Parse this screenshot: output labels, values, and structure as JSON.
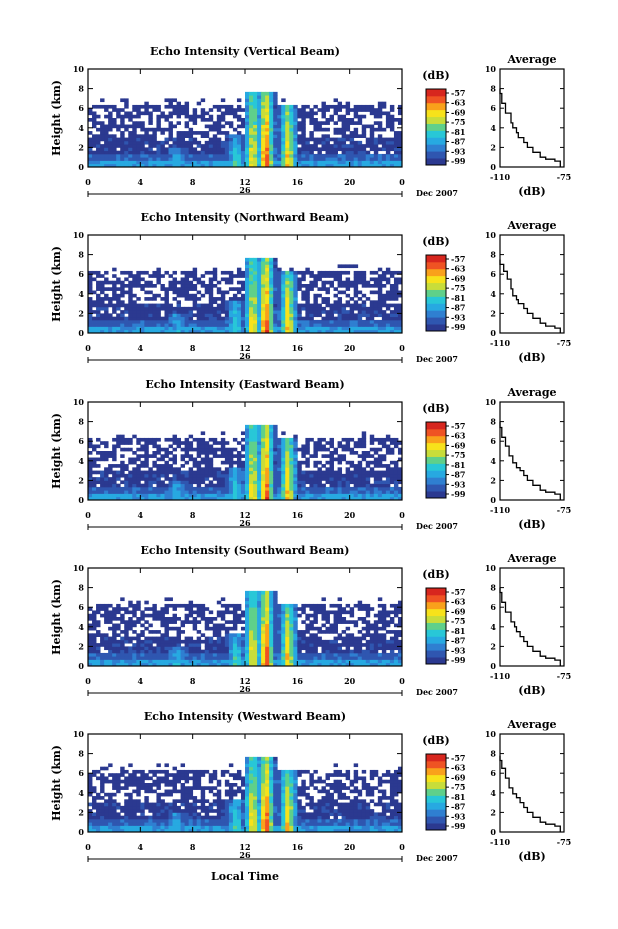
{
  "colors": {
    "colormap": [
      "#2b3990",
      "#2f56b0",
      "#2f7fd1",
      "#27a9e1",
      "#28c7d7",
      "#5fd08a",
      "#c8dd3a",
      "#f7e21b",
      "#f9a11b",
      "#ef5323",
      "#d7261e"
    ],
    "background": "#ffffff",
    "axis": "#000000"
  },
  "shared": {
    "ylabel": "Height (km)",
    "colorbar_unit": "(dB)",
    "colorbar_ticks": [
      "-57",
      "-63",
      "-69",
      "-75",
      "-81",
      "-87",
      "-93",
      "-99"
    ],
    "date_day": "26",
    "date_label": "Dec 2007",
    "xlabel": "Local Time",
    "avg_title": "Average",
    "avg_xlabel": "(dB)",
    "avg_xticks": [
      "-110",
      "-75"
    ]
  },
  "chart_data": [
    {
      "type": "heatmap",
      "title": "Echo Intensity (Vertical Beam)",
      "xticks": [
        "0",
        "4",
        "8",
        "12",
        "16",
        "20",
        "0"
      ],
      "yticks": [
        "0",
        "2",
        "4",
        "6",
        "8",
        "10"
      ],
      "xlim": [
        0,
        24
      ],
      "ylim": [
        0,
        10
      ],
      "zlim": [
        -99,
        -57
      ],
      "bursts": [
        {
          "t": 6.8,
          "top": 2.0,
          "int": 0.35
        },
        {
          "t": 11.3,
          "top": 3.2,
          "int": 0.45
        },
        {
          "t": 12.6,
          "top": 7.8,
          "int": 0.75
        },
        {
          "t": 13.6,
          "top": 7.8,
          "int": 1.0
        },
        {
          "t": 15.3,
          "top": 6.5,
          "int": 0.8
        }
      ],
      "average_profile": {
        "x": [
          -110,
          -109,
          -107,
          -104,
          -103,
          -101,
          -100,
          -97,
          -95,
          -92,
          -88,
          -85,
          -80,
          -77
        ],
        "y": [
          8,
          7.5,
          6.5,
          5.5,
          4.5,
          4.0,
          3.5,
          3.0,
          2.5,
          2.0,
          1.5,
          1.0,
          0.8,
          0.6
        ],
        "xlim": [
          -110,
          -75
        ],
        "ylim": [
          0,
          10
        ],
        "yticks": [
          "0",
          "2",
          "4",
          "6",
          "8",
          "10"
        ]
      }
    },
    {
      "type": "heatmap",
      "title": "Echo Intensity (Northward Beam)",
      "xticks": [
        "0",
        "4",
        "8",
        "12",
        "16",
        "20",
        "0"
      ],
      "yticks": [
        "0",
        "2",
        "4",
        "6",
        "8",
        "10"
      ],
      "xlim": [
        0,
        24
      ],
      "ylim": [
        0,
        10
      ],
      "zlim": [
        -99,
        -57
      ],
      "bursts": [
        {
          "t": 6.8,
          "top": 2.0,
          "int": 0.35
        },
        {
          "t": 11.3,
          "top": 3.2,
          "int": 0.45
        },
        {
          "t": 12.6,
          "top": 7.8,
          "int": 0.75
        },
        {
          "t": 13.6,
          "top": 7.8,
          "int": 1.0
        },
        {
          "t": 15.3,
          "top": 6.5,
          "int": 0.8
        }
      ],
      "average_profile": {
        "x": [
          -110,
          -108,
          -106,
          -104,
          -103,
          -101,
          -100,
          -97,
          -95,
          -92,
          -88,
          -85,
          -80,
          -77
        ],
        "y": [
          7.5,
          7.0,
          6.3,
          5.5,
          4.5,
          3.8,
          3.4,
          3.0,
          2.5,
          2.0,
          1.5,
          1.0,
          0.7,
          0.5
        ],
        "xlim": [
          -110,
          -75
        ],
        "ylim": [
          0,
          10
        ],
        "yticks": [
          "0",
          "2",
          "4",
          "6",
          "8",
          "10"
        ]
      }
    },
    {
      "type": "heatmap",
      "title": "Echo Intensity (Eastward Beam)",
      "xticks": [
        "0",
        "4",
        "8",
        "12",
        "16",
        "20",
        "0"
      ],
      "yticks": [
        "0",
        "2",
        "4",
        "6",
        "8",
        "10"
      ],
      "xlim": [
        0,
        24
      ],
      "ylim": [
        0,
        10
      ],
      "zlim": [
        -99,
        -57
      ],
      "bursts": [
        {
          "t": 6.8,
          "top": 2.0,
          "int": 0.35
        },
        {
          "t": 11.3,
          "top": 3.2,
          "int": 0.45
        },
        {
          "t": 12.6,
          "top": 7.8,
          "int": 0.75
        },
        {
          "t": 13.6,
          "top": 7.8,
          "int": 1.0
        },
        {
          "t": 15.3,
          "top": 6.5,
          "int": 0.8
        }
      ],
      "average_profile": {
        "x": [
          -110,
          -109,
          -107,
          -105,
          -103,
          -101,
          -99,
          -97,
          -95,
          -92,
          -88,
          -85,
          -80,
          -77
        ],
        "y": [
          8,
          7.4,
          6.4,
          5.5,
          4.5,
          3.8,
          3.3,
          3.0,
          2.5,
          2.0,
          1.5,
          1.0,
          0.8,
          0.6
        ],
        "xlim": [
          -110,
          -75
        ],
        "ylim": [
          0,
          10
        ],
        "yticks": [
          "0",
          "2",
          "4",
          "6",
          "8",
          "10"
        ]
      }
    },
    {
      "type": "heatmap",
      "title": "Echo Intensity (Southward Beam)",
      "xticks": [
        "0",
        "4",
        "8",
        "12",
        "16",
        "20",
        "0"
      ],
      "yticks": [
        "0",
        "2",
        "4",
        "6",
        "8",
        "10"
      ],
      "xlim": [
        0,
        24
      ],
      "ylim": [
        0,
        10
      ],
      "zlim": [
        -99,
        -57
      ],
      "bursts": [
        {
          "t": 6.8,
          "top": 2.0,
          "int": 0.35
        },
        {
          "t": 11.3,
          "top": 3.2,
          "int": 0.45
        },
        {
          "t": 12.6,
          "top": 7.8,
          "int": 0.75
        },
        {
          "t": 13.6,
          "top": 7.8,
          "int": 1.0
        },
        {
          "t": 15.3,
          "top": 6.5,
          "int": 0.8
        }
      ],
      "average_profile": {
        "x": [
          -110,
          -109,
          -107,
          -104,
          -102,
          -101,
          -99,
          -97,
          -95,
          -92,
          -88,
          -85,
          -80,
          -77
        ],
        "y": [
          8,
          7.5,
          6.5,
          5.5,
          4.5,
          4.0,
          3.5,
          3.0,
          2.5,
          2.0,
          1.5,
          1.0,
          0.8,
          0.6
        ],
        "xlim": [
          -110,
          -75
        ],
        "ylim": [
          0,
          10
        ],
        "yticks": [
          "0",
          "2",
          "4",
          "6",
          "8",
          "10"
        ]
      }
    },
    {
      "type": "heatmap",
      "title": "Echo Intensity (Westward Beam)",
      "xticks": [
        "0",
        "4",
        "8",
        "12",
        "16",
        "20",
        "0"
      ],
      "yticks": [
        "0",
        "2",
        "4",
        "6",
        "8",
        "10"
      ],
      "xlim": [
        0,
        24
      ],
      "ylim": [
        0,
        10
      ],
      "zlim": [
        -99,
        -57
      ],
      "bursts": [
        {
          "t": 6.8,
          "top": 2.0,
          "int": 0.35
        },
        {
          "t": 11.3,
          "top": 3.2,
          "int": 0.45
        },
        {
          "t": 12.6,
          "top": 7.8,
          "int": 0.75
        },
        {
          "t": 13.6,
          "top": 7.8,
          "int": 1.0
        },
        {
          "t": 15.3,
          "top": 6.5,
          "int": 0.8
        }
      ],
      "average_profile": {
        "x": [
          -110,
          -109,
          -107,
          -105,
          -103,
          -101,
          -99,
          -97,
          -95,
          -92,
          -88,
          -85,
          -80,
          -77
        ],
        "y": [
          7.8,
          7.3,
          6.5,
          5.5,
          4.5,
          3.9,
          3.5,
          3.0,
          2.5,
          2.0,
          1.5,
          1.0,
          0.8,
          0.6
        ],
        "xlim": [
          -110,
          -75
        ],
        "ylim": [
          0,
          10
        ],
        "yticks": [
          "0",
          "2",
          "4",
          "6",
          "8",
          "10"
        ]
      }
    }
  ]
}
